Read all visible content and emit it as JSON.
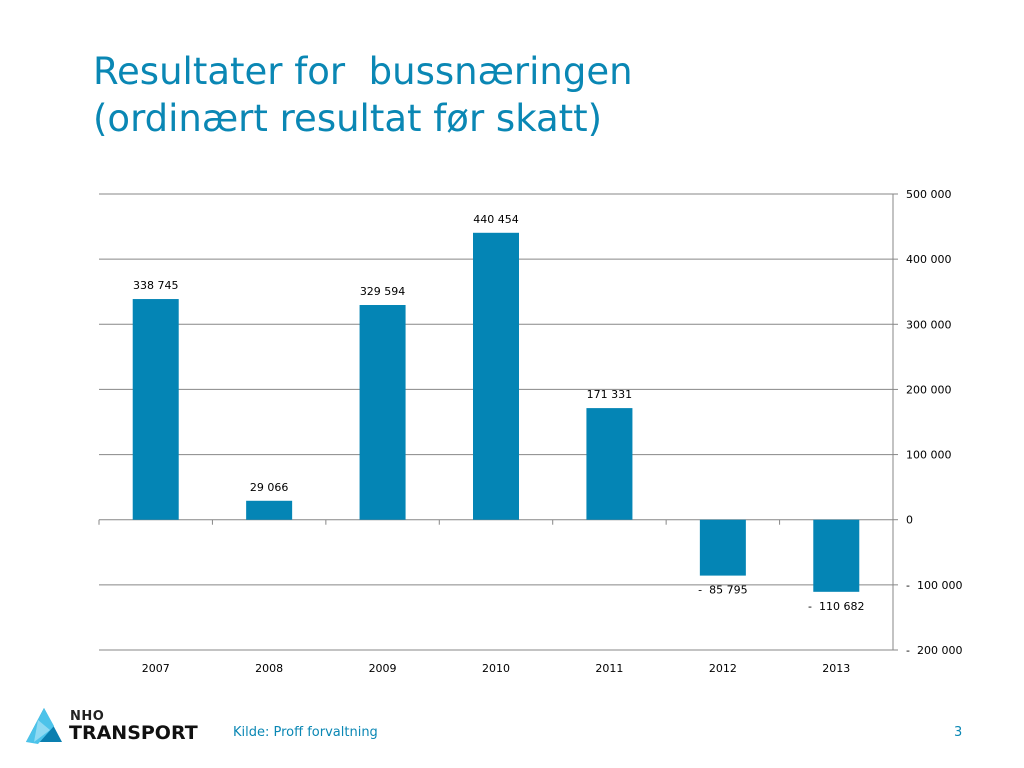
{
  "slide": {
    "title_line1": "Resultater for  bussnæringen",
    "title_line2": "(ordinært resultat før skatt)",
    "source": "Kilde: Proff forvaltning",
    "page_number": "3",
    "logo_top": "NHO",
    "logo_bottom": "TRANSPORT"
  },
  "colors": {
    "title": "#0a87b4",
    "bar": "#0485b5",
    "gridline": "#878787",
    "logo_light": "#4cc3ea",
    "logo_dark": "#0a7fb0"
  },
  "chart_data": {
    "type": "bar",
    "categories": [
      "2007",
      "2008",
      "2009",
      "2010",
      "2011",
      "2012",
      "2013"
    ],
    "values": [
      338745,
      29066,
      329594,
      440454,
      171331,
      -85795,
      -110682
    ],
    "data_labels": [
      "338 745",
      "29 066",
      "329 594",
      "440 454",
      "171 331",
      "-  85 795",
      "-  110 682"
    ],
    "yticks": [
      500000,
      400000,
      300000,
      200000,
      100000,
      0,
      -100000,
      -200000
    ],
    "ytick_labels": [
      "500 000",
      "400 000",
      "300 000",
      "200 000",
      "100 000",
      "0",
      "-  100 000",
      "-  200 000"
    ],
    "ylim": [
      -200000,
      500000
    ],
    "y_axis_side": "right",
    "grid": true,
    "legend": "none",
    "title": "",
    "xlabel": "",
    "ylabel": ""
  }
}
